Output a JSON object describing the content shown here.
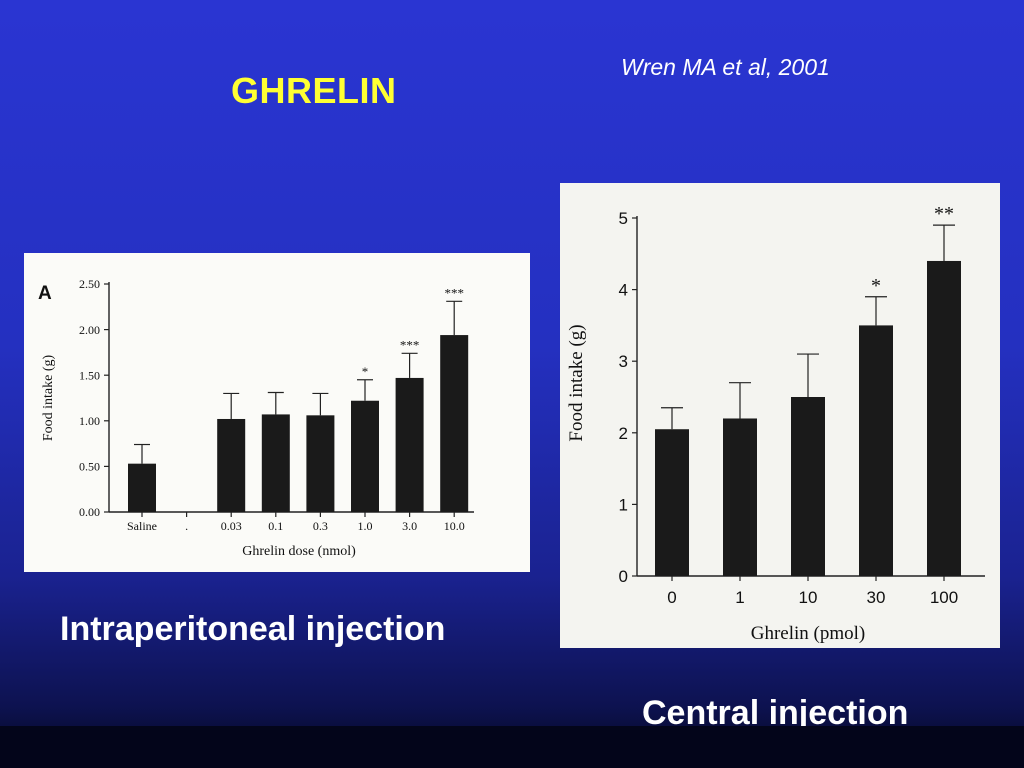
{
  "slide": {
    "title": "GHRELIN",
    "citation": "Wren MA et al, 2001",
    "caption_left": "Intraperitoneal injection",
    "caption_right": "Central injection"
  },
  "colors": {
    "title": "#ffff33",
    "text": "#ffffff",
    "bar": "#1a1a1a"
  },
  "chart_data": [
    {
      "type": "bar",
      "panel_label": "A",
      "xlabel": "Ghrelin dose (nmol)",
      "ylabel": "Food intake (g)",
      "ylim": [
        0,
        2.5
      ],
      "yticks": [
        "0.00",
        "0.50",
        "1.00",
        "1.50",
        "2.00",
        "2.50"
      ],
      "categories": [
        "Saline",
        ".",
        "0.03",
        "0.1",
        "0.3",
        "1.0",
        "3.0",
        "10.0"
      ],
      "values": [
        0.53,
        null,
        1.02,
        1.07,
        1.06,
        1.22,
        1.47,
        1.94
      ],
      "errors": [
        0.21,
        null,
        0.28,
        0.24,
        0.24,
        0.23,
        0.27,
        0.37
      ],
      "significance": [
        "",
        "",
        "",
        "",
        "",
        "*",
        "***",
        "***"
      ],
      "grid": false
    },
    {
      "type": "bar",
      "xlabel": "Ghrelin (pmol)",
      "ylabel": "Food intake (g)",
      "ylim": [
        0,
        5
      ],
      "yticks": [
        "0",
        "1",
        "2",
        "3",
        "4",
        "5"
      ],
      "categories": [
        "0",
        "1",
        "10",
        "30",
        "100"
      ],
      "values": [
        2.05,
        2.2,
        2.5,
        3.5,
        4.4
      ],
      "errors": [
        0.3,
        0.5,
        0.6,
        0.4,
        0.5
      ],
      "significance": [
        "",
        "",
        "",
        "*",
        "**"
      ],
      "grid": false
    }
  ]
}
